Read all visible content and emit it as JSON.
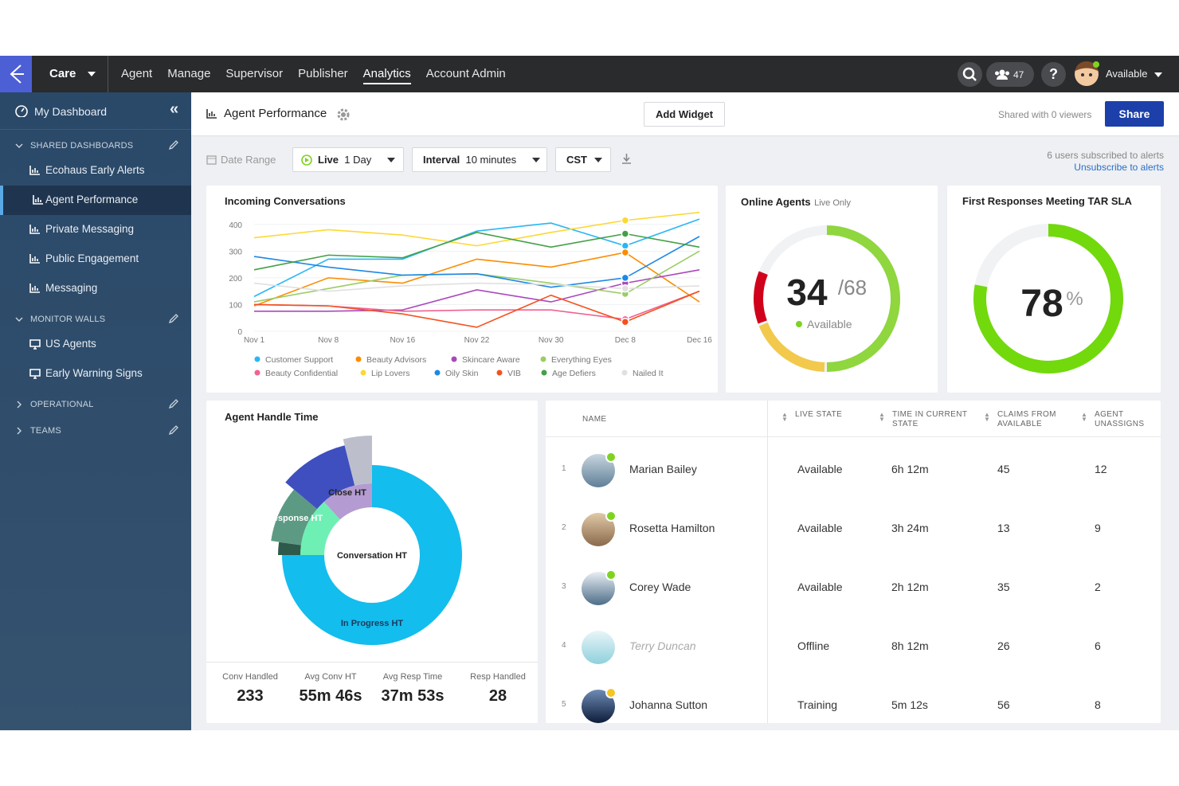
{
  "nav": {
    "product": "Care",
    "items": [
      "Agent",
      "Manage",
      "Supervisor",
      "Publisher",
      "Analytics",
      "Account Admin"
    ],
    "team_count": 47,
    "status": "Available"
  },
  "sidebar": {
    "my_dashboard": "My Dashboard",
    "sections": [
      {
        "title": "SHARED DASHBOARDS",
        "items": [
          "Ecohaus Early Alerts",
          "Agent Performance",
          "Private Messaging",
          "Public Engagement",
          "Messaging"
        ]
      },
      {
        "title": "MONITOR WALLS",
        "items": [
          "US Agents",
          "Early Warning Signs"
        ]
      },
      {
        "title": "OPERATIONAL",
        "items": []
      },
      {
        "title": "TEAMS",
        "items": []
      }
    ]
  },
  "toolbar": {
    "title": "Agent Performance",
    "add_widget": "Add Widget",
    "shared": "Shared with 0 viewers",
    "share": "Share"
  },
  "filters": {
    "date_range": "Date Range",
    "live": "Live",
    "live_value": "1 Day",
    "interval": "Interval",
    "interval_value": "10 minutes",
    "timezone": "CST",
    "subscribed": "6 users subscribed to alerts",
    "unsubscribe": "Unsubscribe to alerts"
  },
  "chart_data": [
    {
      "type": "line",
      "title": "Incoming Conversations",
      "categories": [
        "Nov 1",
        "Nov 8",
        "Nov 16",
        "Nov 22",
        "Nov 30",
        "Dec 8",
        "Dec 16"
      ],
      "ylim": [
        0,
        450
      ],
      "yticks": [
        0,
        100,
        200,
        300,
        400
      ],
      "grid": true,
      "series": [
        {
          "name": "Customer Support",
          "color": "#29b6f6",
          "values": [
            130,
            270,
            270,
            375,
            405,
            320,
            420
          ]
        },
        {
          "name": "Beauty Advisors",
          "color": "#fb8c00",
          "values": [
            95,
            200,
            180,
            270,
            240,
            295,
            110
          ]
        },
        {
          "name": "Skincare Aware",
          "color": "#ab47bc",
          "values": [
            75,
            75,
            80,
            155,
            110,
            180,
            230
          ]
        },
        {
          "name": "Everything Eyes",
          "color": "#9ccc65",
          "values": [
            110,
            160,
            210,
            215,
            180,
            140,
            300
          ]
        },
        {
          "name": "Beauty Confidential",
          "color": "#f06292",
          "values": [
            100,
            95,
            75,
            80,
            80,
            45,
            150
          ]
        },
        {
          "name": "Lip Lovers",
          "color": "#fdd835",
          "values": [
            350,
            380,
            360,
            320,
            370,
            415,
            445
          ]
        },
        {
          "name": "Oily Skin",
          "color": "#1e88e5",
          "values": [
            280,
            240,
            210,
            215,
            165,
            200,
            355
          ]
        },
        {
          "name": "VIB",
          "color": "#f4511e",
          "values": [
            100,
            95,
            65,
            15,
            135,
            35,
            150
          ]
        },
        {
          "name": "Age Defiers",
          "color": "#43a047",
          "values": [
            230,
            285,
            275,
            370,
            315,
            365,
            315
          ]
        },
        {
          "name": "Nailed It",
          "color": "#e0e0e0",
          "values": [
            180,
            150,
            170,
            180,
            175,
            160,
            170
          ]
        }
      ]
    },
    {
      "type": "gauge",
      "title": "Online Agents",
      "subtitle": "Live Only",
      "value": 34,
      "total": {
        "value": 68,
        "label": "/68"
      },
      "status": "Available",
      "color": "#8fd63f"
    },
    {
      "type": "gauge",
      "title": "First Responses Meeting TAR SLA",
      "value": 78,
      "unit": "%",
      "range": [
        0,
        100
      ],
      "color": "#72d90c"
    }
  ],
  "handle_time": {
    "title": "Agent Handle Time",
    "segments": [
      "Close HT",
      "Response HT",
      "Conversation HT",
      "In Progress HT"
    ],
    "stats": [
      {
        "label": "Conv Handled",
        "value": 233
      },
      {
        "label": "Avg Conv HT",
        "value": "55m 46s"
      },
      {
        "label": "Avg Resp Time",
        "value": "37m 53s"
      },
      {
        "label": "Resp Handled",
        "value": 28
      }
    ]
  },
  "table": {
    "headers": [
      "NAME",
      "LIVE STATE",
      "TIME IN CURRENT STATE",
      "CLAIMS FROM AVAILABLE",
      "AGENT UNASSIGNS"
    ],
    "rows": [
      [
        1,
        "Marian Bailey",
        "Available",
        "6h 12m",
        45,
        12
      ],
      [
        2,
        "Rosetta Hamilton",
        "Available",
        "3h 24m",
        13,
        9
      ],
      [
        3,
        "Corey Wade",
        "Available",
        "2h 12m",
        35,
        2
      ],
      [
        4,
        "Terry Duncan",
        "Offline",
        "8h 12m",
        26,
        6
      ],
      [
        5,
        "Johanna Sutton",
        "Training",
        "5m 12s",
        56,
        8
      ]
    ]
  }
}
